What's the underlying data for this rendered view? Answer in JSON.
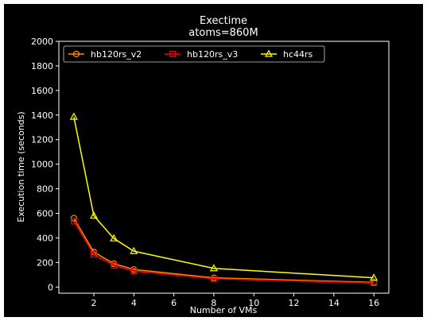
{
  "chart_data": {
    "type": "line",
    "title": "Exectime",
    "subtitle": "atoms=860M",
    "xlabel": "Number of VMs",
    "ylabel": "Execution time (seconds)",
    "xlim": [
      0.25,
      16.75
    ],
    "ylim": [
      -50,
      2000
    ],
    "xticks": [
      2,
      4,
      6,
      8,
      10,
      12,
      14,
      16
    ],
    "yticks": [
      0,
      200,
      400,
      600,
      800,
      1000,
      1200,
      1400,
      1600,
      1800,
      2000
    ],
    "grid": false,
    "legend_position": "top-left",
    "background": "#000000",
    "x": [
      1,
      2,
      3,
      4,
      8,
      16
    ],
    "series": [
      {
        "name": "hb120rs_v2",
        "color": "#ff8c00",
        "marker": "circle",
        "values": [
          560,
          285,
          190,
          143,
          75,
          38
        ]
      },
      {
        "name": "hb120rs_v3",
        "color": "#ff0000",
        "marker": "square",
        "values": [
          535,
          265,
          175,
          130,
          68,
          33
        ]
      },
      {
        "name": "hc44rs",
        "color": "#ffff00",
        "marker": "triangle",
        "values": [
          1385,
          580,
          395,
          292,
          152,
          75
        ]
      }
    ]
  }
}
